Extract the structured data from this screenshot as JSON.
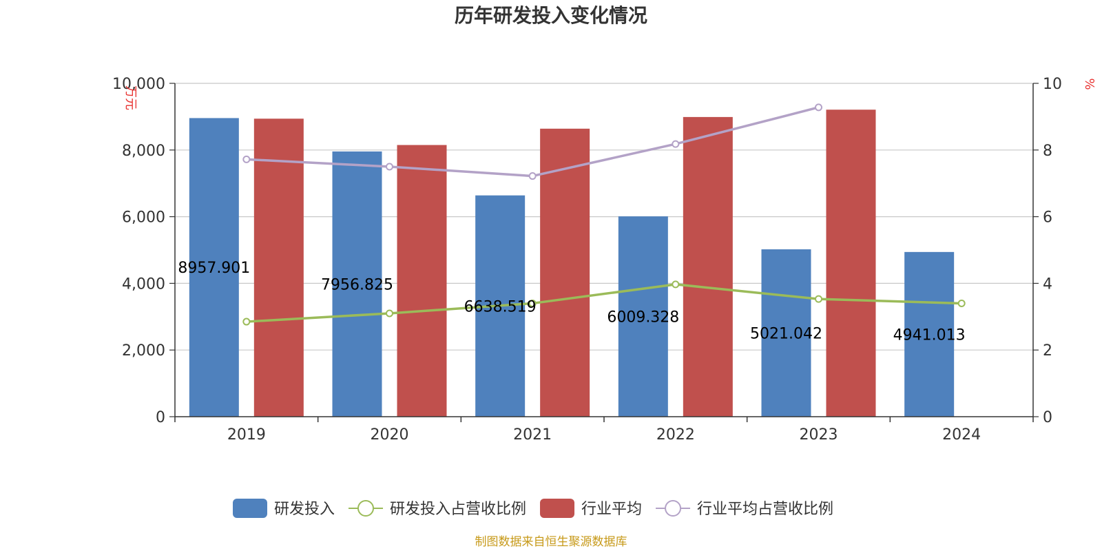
{
  "title": "历年研发投入变化情况",
  "footer": "制图数据来自恒生聚源数据库",
  "units": {
    "left": "万元",
    "right": "%"
  },
  "colors": {
    "rd_bar": "#4f81bd",
    "industry_bar": "#c0504d",
    "rd_ratio_line": "#9bbb59",
    "industry_ratio_line": "#b3a2c7",
    "grid": "#c8c8c8",
    "axis": "#333333"
  },
  "legend": [
    {
      "name": "研发投入",
      "kind": "bar",
      "color_key": "rd_bar"
    },
    {
      "name": "研发投入占营收比例",
      "kind": "line",
      "color_key": "rd_ratio_line"
    },
    {
      "name": "行业平均",
      "kind": "bar",
      "color_key": "industry_bar"
    },
    {
      "name": "行业平均占营收比例",
      "kind": "line",
      "color_key": "industry_ratio_line"
    }
  ],
  "chart_data": {
    "type": "bar",
    "title": "历年研发投入变化情况",
    "categories": [
      "2019",
      "2020",
      "2021",
      "2022",
      "2023",
      "2024"
    ],
    "y_left": {
      "label": "万元",
      "ylim": [
        0,
        10000
      ],
      "ticks": [
        0,
        2000,
        4000,
        6000,
        8000,
        10000
      ],
      "tick_labels": [
        "0",
        "2,000",
        "4,000",
        "6,000",
        "8,000",
        "10,000"
      ]
    },
    "y_right": {
      "label": "%",
      "ylim": [
        0,
        10
      ],
      "ticks": [
        0,
        2,
        4,
        6,
        8,
        10
      ],
      "tick_labels": [
        "0",
        "2",
        "4",
        "6",
        "8",
        "10"
      ]
    },
    "grid": true,
    "legend_position": "bottom",
    "series": [
      {
        "name": "研发投入",
        "type": "bar",
        "axis": "left",
        "values": [
          8957.901,
          7956.825,
          6638.519,
          6009.328,
          5021.042,
          4941.013
        ],
        "data_labels": [
          "8957.901",
          "7956.825",
          "6638.519",
          "6009.328",
          "5021.042",
          "4941.013"
        ]
      },
      {
        "name": "行业平均",
        "type": "bar",
        "axis": "left",
        "values": [
          8940,
          8150,
          8640,
          8990,
          9210,
          null
        ]
      },
      {
        "name": "研发投入占营收比例",
        "type": "line",
        "axis": "right",
        "values": [
          2.85,
          3.1,
          3.4,
          3.97,
          3.53,
          3.4
        ]
      },
      {
        "name": "行业平均占营收比例",
        "type": "line",
        "axis": "right",
        "values": [
          7.72,
          7.5,
          7.22,
          8.18,
          9.28,
          null
        ]
      }
    ]
  }
}
